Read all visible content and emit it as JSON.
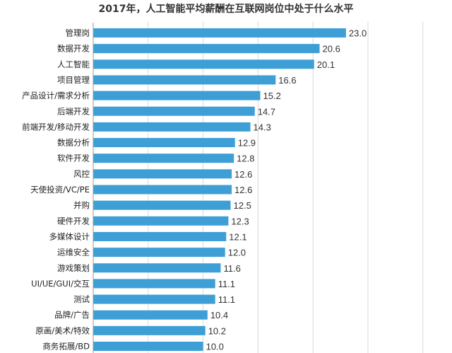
{
  "chart_data": {
    "type": "bar",
    "orientation": "horizontal",
    "title": "2017年，人工智能平均薪酬在互联网岗位中处于什么水平",
    "categories": [
      "管理岗",
      "数据开发",
      "人工智能",
      "项目管理",
      "产品设计/需求分析",
      "后端开发",
      "前端开发/移动开发",
      "数据分析",
      "软件开发",
      "风控",
      "天使投资/VC/PE",
      "并购",
      "硬件开发",
      "多媒体设计",
      "运维安全",
      "游戏策划",
      "UI/UE/GUI/交互",
      "测试",
      "品牌/广告",
      "原画/美术/特效",
      "商务拓展/BD"
    ],
    "values": [
      23.0,
      20.6,
      20.1,
      16.6,
      15.2,
      14.7,
      14.3,
      12.9,
      12.8,
      12.6,
      12.6,
      12.5,
      12.3,
      12.1,
      12.0,
      11.6,
      11.1,
      11.1,
      10.4,
      10.2,
      10.0
    ],
    "value_labels": [
      "23.0",
      "20.6",
      "20.1",
      "16.6",
      "15.2",
      "14.7",
      "14.3",
      "12.9",
      "12.8",
      "12.6",
      "12.6",
      "12.5",
      "12.3",
      "12.1",
      "12.0",
      "11.6",
      "11.1",
      "11.1",
      "10.4",
      "10.2",
      "10.0"
    ],
    "grid": true,
    "legend": "none",
    "colors": {
      "bar": "#3d9fd5",
      "grid": "#d9d9d9",
      "axis": "#9a9a9a"
    }
  }
}
